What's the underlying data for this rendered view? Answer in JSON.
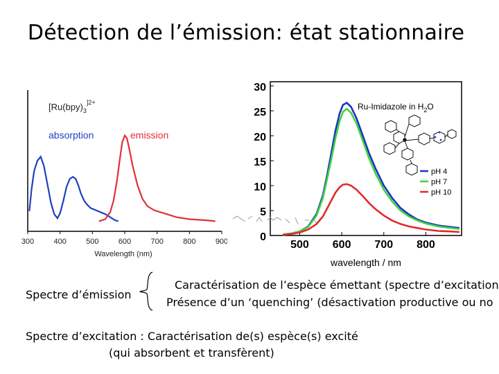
{
  "slide": {
    "title": "Détection de l’émission: état stationnaire",
    "label_emission": "Spectre d’émission",
    "desc_line1": "Caractérisation de l’espèce émettant (spectre d’excitation",
    "desc_line2": "Présence d’un ‘quenching’ (désactivation productive ou no",
    "excitation_line1": "Spectre d’excitation : Caractérisation de(s) espèce(s) excité",
    "excitation_line2": "(qui absorbent et transfèrent)"
  },
  "chart_data": [
    {
      "type": "line",
      "title": "[Ru(bpy)3]2+",
      "title_base": "[Ru(bpy)",
      "title_sub": "3",
      "title_sup": "]2+",
      "xlabel": "Wavelength (nm)",
      "ylabel": "",
      "xlim": [
        300,
        900
      ],
      "xticks": [
        "300",
        "400",
        "500",
        "600",
        "700",
        "800",
        "900"
      ],
      "grid": false,
      "series": [
        {
          "name": "absorption",
          "color": "#1f3fbf",
          "points": [
            [
              305,
              120
            ],
            [
              312,
              98
            ],
            [
              320,
              80
            ],
            [
              330,
              70
            ],
            [
              340,
              66
            ],
            [
              350,
              75
            ],
            [
              362,
              95
            ],
            [
              372,
              112
            ],
            [
              382,
              123
            ],
            [
              392,
              127
            ],
            [
              400,
              122
            ],
            [
              410,
              110
            ],
            [
              420,
              96
            ],
            [
              430,
              88
            ],
            [
              440,
              86
            ],
            [
              448,
              88
            ],
            [
              456,
              94
            ],
            [
              465,
              103
            ],
            [
              475,
              110
            ],
            [
              485,
              114
            ],
            [
              495,
              117
            ],
            [
              510,
              119
            ],
            [
              525,
              121
            ],
            [
              540,
              123
            ],
            [
              555,
              126
            ],
            [
              570,
              129
            ],
            [
              580,
              130
            ]
          ]
        },
        {
          "name": "emission",
          "color": "#e0303a",
          "points": [
            [
              520,
              130
            ],
            [
              540,
              128
            ],
            [
              555,
              121
            ],
            [
              565,
              110
            ],
            [
              575,
              92
            ],
            [
              585,
              68
            ],
            [
              592,
              52
            ],
            [
              600,
              45
            ],
            [
              607,
              48
            ],
            [
              615,
              60
            ],
            [
              625,
              76
            ],
            [
              640,
              95
            ],
            [
              655,
              108
            ],
            [
              670,
              115
            ],
            [
              690,
              119
            ],
            [
              710,
              121
            ],
            [
              730,
              123
            ],
            [
              760,
              126
            ],
            [
              800,
              128
            ],
            [
              850,
              129
            ],
            [
              880,
              130
            ]
          ]
        }
      ]
    },
    {
      "type": "line",
      "title": "Ru-Imidazole in H2O",
      "title_base": "Ru-Imidazole in H",
      "title_sub": "2",
      "title_end": "O",
      "xlabel": "wavelength / nm",
      "ylabel": "",
      "xlim": [
        430,
        885
      ],
      "ylim": [
        0,
        30
      ],
      "xticks": [
        500,
        600,
        700,
        800
      ],
      "yticks": [
        0,
        5,
        10,
        15,
        20,
        25,
        30
      ],
      "grid": false,
      "legend_position": "right",
      "series": [
        {
          "name": "pH 4",
          "color": "#1f2fc8",
          "points": [
            [
              460,
              0.2
            ],
            [
              480,
              0.4
            ],
            [
              500,
              0.8
            ],
            [
              520,
              1.8
            ],
            [
              540,
              4.3
            ],
            [
              555,
              8
            ],
            [
              565,
              12
            ],
            [
              575,
              16.5
            ],
            [
              585,
              21
            ],
            [
              595,
              24.5
            ],
            [
              603,
              26.2
            ],
            [
              612,
              26.6
            ],
            [
              622,
              25.8
            ],
            [
              635,
              23.5
            ],
            [
              650,
              20
            ],
            [
              665,
              16.5
            ],
            [
              680,
              13.5
            ],
            [
              700,
              10
            ],
            [
              720,
              7.5
            ],
            [
              740,
              5.5
            ],
            [
              760,
              4.2
            ],
            [
              780,
              3.2
            ],
            [
              800,
              2.6
            ],
            [
              830,
              2
            ],
            [
              860,
              1.7
            ],
            [
              880,
              1.5
            ]
          ]
        },
        {
          "name": "pH 7",
          "color": "#3cd43c",
          "points": [
            [
              460,
              0.2
            ],
            [
              480,
              0.4
            ],
            [
              500,
              0.8
            ],
            [
              520,
              1.7
            ],
            [
              540,
              4
            ],
            [
              555,
              7.5
            ],
            [
              565,
              11.3
            ],
            [
              575,
              15.3
            ],
            [
              585,
              19.5
            ],
            [
              595,
              23
            ],
            [
              603,
              24.8
            ],
            [
              612,
              25.4
            ],
            [
              622,
              24.6
            ],
            [
              635,
              22.5
            ],
            [
              650,
              19
            ],
            [
              665,
              15.5
            ],
            [
              680,
              12.5
            ],
            [
              700,
              9.2
            ],
            [
              720,
              6.8
            ],
            [
              740,
              5
            ],
            [
              760,
              3.8
            ],
            [
              780,
              3
            ],
            [
              800,
              2.4
            ],
            [
              830,
              1.8
            ],
            [
              860,
              1.5
            ],
            [
              880,
              1.3
            ]
          ]
        },
        {
          "name": "pH 10",
          "color": "#e02a2a",
          "points": [
            [
              460,
              0.1
            ],
            [
              480,
              0.3
            ],
            [
              500,
              0.6
            ],
            [
              520,
              1.2
            ],
            [
              540,
              2.3
            ],
            [
              555,
              3.8
            ],
            [
              565,
              5.4
            ],
            [
              575,
              7
            ],
            [
              585,
              8.6
            ],
            [
              595,
              9.7
            ],
            [
              603,
              10.2
            ],
            [
              612,
              10.3
            ],
            [
              622,
              10
            ],
            [
              635,
              9.2
            ],
            [
              650,
              7.9
            ],
            [
              665,
              6.5
            ],
            [
              680,
              5.3
            ],
            [
              700,
              4
            ],
            [
              720,
              3
            ],
            [
              740,
              2.3
            ],
            [
              760,
              1.8
            ],
            [
              780,
              1.5
            ],
            [
              800,
              1.2
            ],
            [
              830,
              0.9
            ],
            [
              860,
              0.8
            ],
            [
              880,
              0.7
            ]
          ]
        }
      ]
    }
  ]
}
